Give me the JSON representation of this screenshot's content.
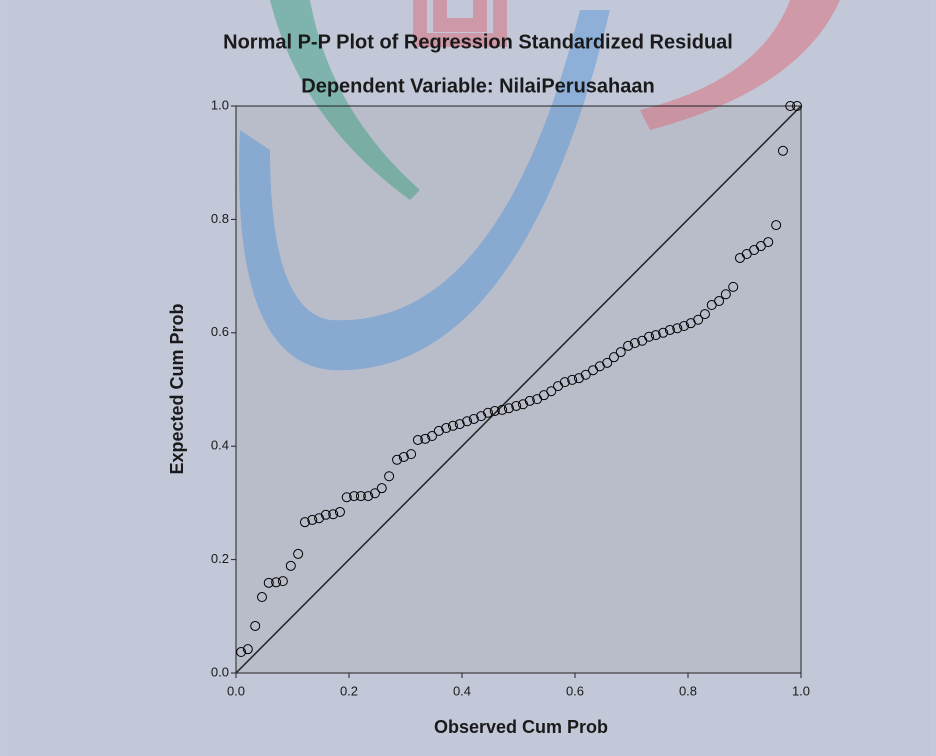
{
  "chart_data": {
    "type": "scatter",
    "title": "Normal P-P Plot of Regression Standardized Residual",
    "subtitle": "Dependent Variable: NilaiPerusahaan",
    "x_label": "Observed Cum Prob",
    "y_label": "Expected Cum Prob",
    "xlim": [
      0,
      1
    ],
    "ylim": [
      0,
      1
    ],
    "xticks": [
      {
        "value": 0,
        "label": "0.0"
      },
      0.2,
      0.4,
      0.6,
      0.8,
      {
        "value": 1,
        "label": "1.0"
      }
    ],
    "yticks": [
      {
        "value": 0,
        "label": "0.0"
      },
      0.2,
      0.4,
      0.6,
      0.8,
      {
        "value": 1,
        "label": "1.0"
      }
    ],
    "diagonal": true,
    "color": "#000000",
    "x": [
      0.009,
      0.021,
      0.034,
      0.046,
      0.058,
      0.071,
      0.083,
      0.097,
      0.11,
      0.122,
      0.135,
      0.147,
      0.159,
      0.172,
      0.184,
      0.196,
      0.209,
      0.221,
      0.234,
      0.246,
      0.258,
      0.271,
      0.285,
      0.297,
      0.31,
      0.322,
      0.335,
      0.347,
      0.359,
      0.372,
      0.384,
      0.396,
      0.409,
      0.421,
      0.434,
      0.446,
      0.458,
      0.471,
      0.483,
      0.496,
      0.508,
      0.52,
      0.533,
      0.545,
      0.558,
      0.57,
      0.582,
      0.595,
      0.607,
      0.619,
      0.632,
      0.644,
      0.657,
      0.669,
      0.681,
      0.694,
      0.706,
      0.719,
      0.731,
      0.743,
      0.756,
      0.768,
      0.781,
      0.793,
      0.805,
      0.818,
      0.83,
      0.842,
      0.855,
      0.867,
      0.88,
      0.892,
      0.904,
      0.917,
      0.929,
      0.942,
      0.956,
      0.968,
      0.981,
      0.993
    ],
    "values": [
      0.037,
      0.042,
      0.083,
      0.134,
      0.159,
      0.16,
      0.162,
      0.189,
      0.21,
      0.266,
      0.27,
      0.273,
      0.279,
      0.28,
      0.284,
      0.31,
      0.312,
      0.312,
      0.312,
      0.317,
      0.326,
      0.347,
      0.376,
      0.381,
      0.386,
      0.411,
      0.413,
      0.418,
      0.427,
      0.432,
      0.436,
      0.439,
      0.444,
      0.448,
      0.453,
      0.459,
      0.462,
      0.464,
      0.467,
      0.471,
      0.474,
      0.48,
      0.483,
      0.49,
      0.497,
      0.506,
      0.513,
      0.517,
      0.52,
      0.526,
      0.534,
      0.541,
      0.547,
      0.557,
      0.566,
      0.577,
      0.582,
      0.586,
      0.593,
      0.596,
      0.6,
      0.605,
      0.608,
      0.612,
      0.617,
      0.623,
      0.633,
      0.649,
      0.656,
      0.668,
      0.681,
      0.732,
      0.739,
      0.746,
      0.753,
      0.76,
      0.79,
      0.921,
      1.0,
      1.0
    ]
  }
}
